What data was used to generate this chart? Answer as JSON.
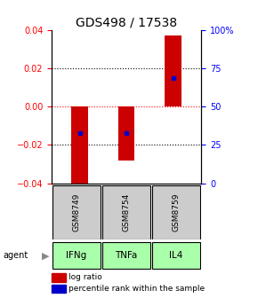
{
  "title": "GDS498 / 17538",
  "samples": [
    "GSM8749",
    "GSM8754",
    "GSM8759"
  ],
  "agents": [
    "IFNg",
    "TNFa",
    "IL4"
  ],
  "log_ratios": [
    -0.043,
    -0.028,
    0.037
  ],
  "percentile_values": [
    -0.014,
    -0.014,
    0.015
  ],
  "ylim_left": [
    -0.04,
    0.04
  ],
  "ylim_right": [
    0,
    100
  ],
  "yticks_left": [
    -0.04,
    -0.02,
    0,
    0.02,
    0.04
  ],
  "yticks_right": [
    0,
    25,
    50,
    75,
    100
  ],
  "bar_color": "#cc0000",
  "dot_color": "#0000cc",
  "agent_bg": "#aaffaa",
  "sample_bg": "#cccccc",
  "title_fontsize": 10,
  "tick_fontsize": 7,
  "legend_fontsize": 6.5
}
